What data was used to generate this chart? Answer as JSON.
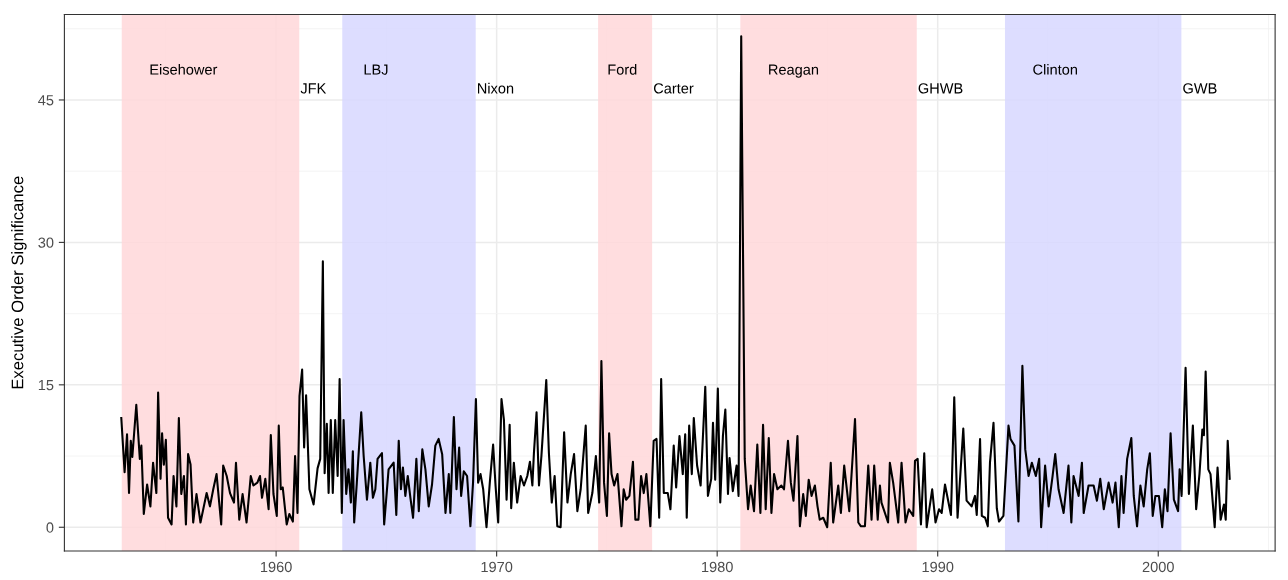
{
  "chart_data": {
    "type": "line",
    "ylabel": "Executive Order Significance",
    "xlim": [
      1950.4,
      2005.3
    ],
    "ylim": [
      -2.5,
      54
    ],
    "xticks": [
      1960,
      1970,
      1980,
      1990,
      2000
    ],
    "yticks": [
      0,
      15,
      30,
      45
    ],
    "grid": true,
    "marker": "none",
    "line_style": "solid",
    "series": [
      {
        "color": "#000000",
        "x": [
          1952.98,
          1953.13,
          1953.24,
          1953.33,
          1953.41,
          1953.48,
          1953.66,
          1953.82,
          1953.89,
          1954.0,
          1954.15,
          1954.3,
          1954.42,
          1954.57,
          1954.65,
          1954.76,
          1954.83,
          1954.91,
          1955.0,
          1955.1,
          1955.26,
          1955.35,
          1955.48,
          1955.59,
          1955.7,
          1955.82,
          1955.91,
          1956.01,
          1956.12,
          1956.24,
          1956.39,
          1956.57,
          1956.85,
          1957.0,
          1957.15,
          1957.3,
          1957.51,
          1957.6,
          1957.76,
          1957.91,
          1958.09,
          1958.18,
          1958.33,
          1958.48,
          1958.66,
          1958.85,
          1958.97,
          1959.15,
          1959.27,
          1959.36,
          1959.51,
          1959.66,
          1959.76,
          1959.88,
          1960.03,
          1960.12,
          1960.21,
          1960.3,
          1960.48,
          1960.6,
          1960.76,
          1960.86,
          1960.97,
          1961.06,
          1961.18,
          1961.27,
          1961.36,
          1961.51,
          1961.7,
          1961.88,
          1962.0,
          1962.12,
          1962.2,
          1962.3,
          1962.38,
          1962.48,
          1962.57,
          1962.68,
          1962.79,
          1962.88,
          1962.98,
          1963.06,
          1963.18,
          1963.28,
          1963.39,
          1963.48,
          1963.54,
          1963.66,
          1963.86,
          1963.97,
          1964.12,
          1964.27,
          1964.39,
          1964.5,
          1964.6,
          1964.8,
          1964.9,
          1965.1,
          1965.33,
          1965.45,
          1965.56,
          1965.66,
          1965.75,
          1965.86,
          1965.97,
          1966.09,
          1966.21,
          1966.36,
          1966.47,
          1966.63,
          1966.77,
          1966.92,
          1967.07,
          1967.22,
          1967.37,
          1967.53,
          1967.68,
          1967.83,
          1967.9,
          1968.06,
          1968.18,
          1968.3,
          1968.39,
          1968.51,
          1968.66,
          1968.81,
          1968.93,
          1969.06,
          1969.16,
          1969.27,
          1969.39,
          1969.54,
          1969.69,
          1969.84,
          1969.95,
          1970.07,
          1970.22,
          1970.33,
          1970.45,
          1970.59,
          1970.66,
          1970.78,
          1970.93,
          1971.09,
          1971.24,
          1971.39,
          1971.51,
          1971.62,
          1971.69,
          1971.81,
          1971.92,
          1972.03,
          1972.25,
          1972.37,
          1972.5,
          1972.63,
          1972.75,
          1972.9,
          1973.06,
          1973.21,
          1973.36,
          1973.51,
          1973.66,
          1973.81,
          1974.04,
          1974.15,
          1974.34,
          1974.5,
          1974.65,
          1974.75,
          1974.87,
          1975.0,
          1975.1,
          1975.21,
          1975.33,
          1975.48,
          1975.66,
          1975.76,
          1975.87,
          1976.02,
          1976.18,
          1976.29,
          1976.43,
          1976.55,
          1976.67,
          1976.79,
          1976.97,
          1977.12,
          1977.25,
          1977.37,
          1977.46,
          1977.58,
          1977.76,
          1977.88,
          1978.03,
          1978.14,
          1978.29,
          1978.44,
          1978.55,
          1978.62,
          1978.73,
          1978.85,
          1978.94,
          1979.09,
          1979.25,
          1979.46,
          1979.58,
          1979.73,
          1979.81,
          1979.91,
          1980.03,
          1980.14,
          1980.26,
          1980.37,
          1980.49,
          1980.56,
          1980.71,
          1980.88,
          1980.97,
          1981.09,
          1981.25,
          1981.4,
          1981.52,
          1981.67,
          1981.82,
          1981.96,
          1982.08,
          1982.2,
          1982.34,
          1982.46,
          1982.58,
          1982.73,
          1982.91,
          1983.03,
          1983.21,
          1983.34,
          1983.46,
          1983.64,
          1983.75,
          1983.9,
          1984.02,
          1984.15,
          1984.28,
          1984.43,
          1984.55,
          1984.65,
          1984.81,
          1984.99,
          1985.15,
          1985.26,
          1985.49,
          1985.61,
          1985.76,
          1985.99,
          1986.25,
          1986.4,
          1986.52,
          1986.7,
          1986.85,
          1987.0,
          1987.12,
          1987.28,
          1987.38,
          1987.45,
          1987.75,
          1987.83,
          1987.98,
          1988.21,
          1988.36,
          1988.54,
          1988.69,
          1988.89,
          1988.97,
          1989.09,
          1989.24,
          1989.39,
          1989.5,
          1989.75,
          1989.9,
          1990.06,
          1990.18,
          1990.33,
          1990.6,
          1990.75,
          1990.9,
          1991.16,
          1991.31,
          1991.54,
          1991.69,
          1991.77,
          1991.92,
          1992.0,
          1992.15,
          1992.27,
          1992.37,
          1992.53,
          1992.68,
          1992.78,
          1992.98,
          1993.21,
          1993.3,
          1993.48,
          1993.66,
          1993.84,
          1993.97,
          1994.12,
          1994.27,
          1994.45,
          1994.6,
          1994.69,
          1994.87,
          1995.03,
          1995.21,
          1995.33,
          1995.48,
          1995.71,
          1995.93,
          1996.06,
          1996.16,
          1996.39,
          1996.54,
          1996.62,
          1996.84,
          1997.07,
          1997.22,
          1997.37,
          1997.53,
          1997.75,
          1997.93,
          1998.06,
          1998.21,
          1998.33,
          1998.43,
          1998.59,
          1998.78,
          1998.89,
          1999.04,
          1999.19,
          1999.34,
          1999.5,
          1999.62,
          1999.75,
          1999.87,
          2000.03,
          2000.18,
          2000.3,
          2000.42,
          2000.56,
          2000.71,
          2000.9,
          2000.97,
          2001.06,
          2001.24,
          2001.39,
          2001.57,
          2001.72,
          2001.87,
          2002.0,
          2002.07,
          2002.15,
          2002.27,
          2002.37,
          2002.56,
          2002.69,
          2002.83,
          2002.98,
          2003.06,
          2003.15,
          2003.24
        ],
        "values": [
          11.5,
          5.8,
          9.8,
          3.6,
          9.1,
          7.4,
          12.9,
          7.2,
          8.6,
          1.4,
          4.5,
          2.2,
          6.8,
          3.6,
          14.2,
          5.1,
          9.9,
          6.6,
          9.2,
          1.0,
          0.3,
          5.4,
          2.2,
          11.5,
          3.5,
          5.4,
          0.3,
          7.7,
          6.6,
          0.5,
          3.5,
          0.5,
          3.6,
          2.2,
          4.0,
          5.6,
          0.3,
          6.5,
          5.4,
          3.6,
          2.6,
          6.8,
          0.8,
          3.5,
          0.5,
          5.4,
          4.4,
          4.7,
          5.4,
          3.1,
          5.1,
          1.9,
          9.7,
          3.5,
          1.2,
          10.7,
          4.0,
          4.2,
          0.3,
          1.4,
          0.6,
          7.5,
          1.5,
          13.8,
          16.6,
          8.4,
          13.9,
          4.0,
          2.4,
          6.2,
          7.2,
          28.0,
          5.7,
          10.9,
          3.6,
          11.3,
          3.6,
          11.3,
          5.4,
          15.6,
          1.5,
          11.3,
          3.5,
          6.1,
          2.6,
          8.0,
          0.5,
          4.7,
          12.1,
          7.5,
          2.9,
          6.8,
          3.1,
          4.0,
          7.2,
          7.8,
          0.3,
          6.1,
          6.8,
          1.3,
          9.1,
          4.0,
          6.3,
          3.3,
          5.4,
          3.1,
          1.0,
          7.2,
          1.7,
          8.2,
          6.1,
          2.2,
          4.5,
          8.6,
          9.3,
          7.7,
          1.5,
          5.6,
          1.5,
          11.6,
          4.0,
          8.4,
          3.3,
          5.9,
          5.4,
          0.1,
          4.7,
          13.5,
          4.7,
          5.6,
          4.0,
          0.0,
          4.7,
          8.7,
          4.4,
          0.5,
          13.5,
          11.3,
          2.9,
          10.8,
          2.0,
          6.8,
          2.6,
          5.4,
          4.4,
          5.4,
          6.9,
          4.4,
          7.8,
          12.1,
          4.4,
          7.5,
          15.5,
          7.8,
          2.6,
          5.4,
          0.1,
          0.0,
          10.0,
          2.6,
          5.6,
          7.7,
          1.7,
          4.0,
          10.7,
          1.5,
          3.6,
          7.5,
          2.6,
          17.5,
          4.7,
          1.2,
          9.9,
          5.6,
          4.4,
          5.6,
          0.1,
          4.0,
          2.9,
          3.3,
          6.9,
          0.8,
          0.8,
          5.4,
          3.6,
          5.6,
          0.1,
          9.1,
          9.3,
          1.0,
          15.6,
          3.6,
          3.6,
          1.9,
          8.6,
          4.2,
          9.6,
          5.6,
          9.8,
          1.0,
          10.7,
          5.6,
          11.5,
          6.5,
          4.4,
          14.8,
          3.3,
          5.1,
          11.0,
          5.0,
          14.6,
          2.6,
          9.6,
          12.4,
          3.5,
          7.3,
          3.8,
          6.5,
          3.3,
          51.7,
          7.2,
          1.9,
          4.4,
          1.7,
          8.7,
          1.5,
          10.8,
          1.9,
          9.4,
          1.5,
          5.6,
          4.0,
          4.4,
          4.0,
          9.1,
          4.7,
          2.8,
          9.6,
          0.1,
          3.5,
          1.2,
          5.0,
          3.3,
          4.4,
          2.2,
          0.8,
          1.0,
          0.0,
          6.8,
          0.5,
          4.4,
          1.5,
          6.5,
          1.7,
          11.4,
          0.5,
          0.1,
          0.1,
          6.5,
          0.8,
          6.5,
          0.8,
          4.4,
          2.6,
          0.5,
          6.8,
          4.7,
          0.5,
          6.8,
          0.5,
          1.9,
          1.2,
          7.0,
          7.2,
          0.3,
          7.8,
          0.0,
          4.0,
          0.5,
          1.9,
          1.5,
          4.5,
          1.3,
          13.7,
          1.0,
          10.4,
          2.8,
          2.2,
          3.3,
          1.3,
          9.3,
          1.2,
          1.0,
          0.1,
          6.8,
          11.0,
          2.0,
          0.6,
          1.2,
          10.7,
          9.3,
          8.6,
          0.6,
          17.0,
          8.2,
          5.4,
          6.8,
          5.4,
          7.2,
          0.0,
          6.5,
          2.2,
          5.4,
          7.7,
          4.0,
          1.5,
          6.5,
          0.5,
          5.4,
          3.3,
          6.8,
          1.5,
          4.4,
          4.4,
          2.8,
          5.1,
          1.9,
          4.7,
          2.6,
          4.7,
          0.0,
          5.4,
          1.5,
          7.2,
          9.4,
          3.3,
          0.1,
          4.4,
          2.2,
          6.1,
          7.8,
          1.2,
          3.3,
          3.3,
          0.0,
          4.0,
          1.7,
          9.9,
          2.9,
          1.7,
          6.1,
          3.3,
          16.8,
          3.5,
          10.7,
          1.9,
          5.6,
          10.3,
          9.7,
          16.4,
          6.1,
          5.6,
          0.0,
          6.3,
          0.8,
          2.4,
          0.8,
          9.1,
          5.1
        ]
      }
    ],
    "bands": [
      {
        "axis": "x",
        "from": 1953.0,
        "to": 1961.05,
        "color": "#ffd7d9",
        "label": "Eisehower"
      },
      {
        "axis": "x",
        "from": 1963.0,
        "to": 1969.05,
        "color": "#d7d7ff",
        "label": "LBJ"
      },
      {
        "axis": "x",
        "from": 1974.6,
        "to": 1977.05,
        "color": "#ffd7d9",
        "label": "Ford"
      },
      {
        "axis": "x",
        "from": 1981.05,
        "to": 1989.05,
        "color": "#ffd7d9",
        "label": "Reagan"
      },
      {
        "axis": "x",
        "from": 1993.05,
        "to": 2001.05,
        "color": "#d7d7ff",
        "label": "Clinton"
      }
    ],
    "annotations": [
      "JFK",
      "Nixon",
      "Carter",
      "GHWB",
      "GWB"
    ]
  }
}
